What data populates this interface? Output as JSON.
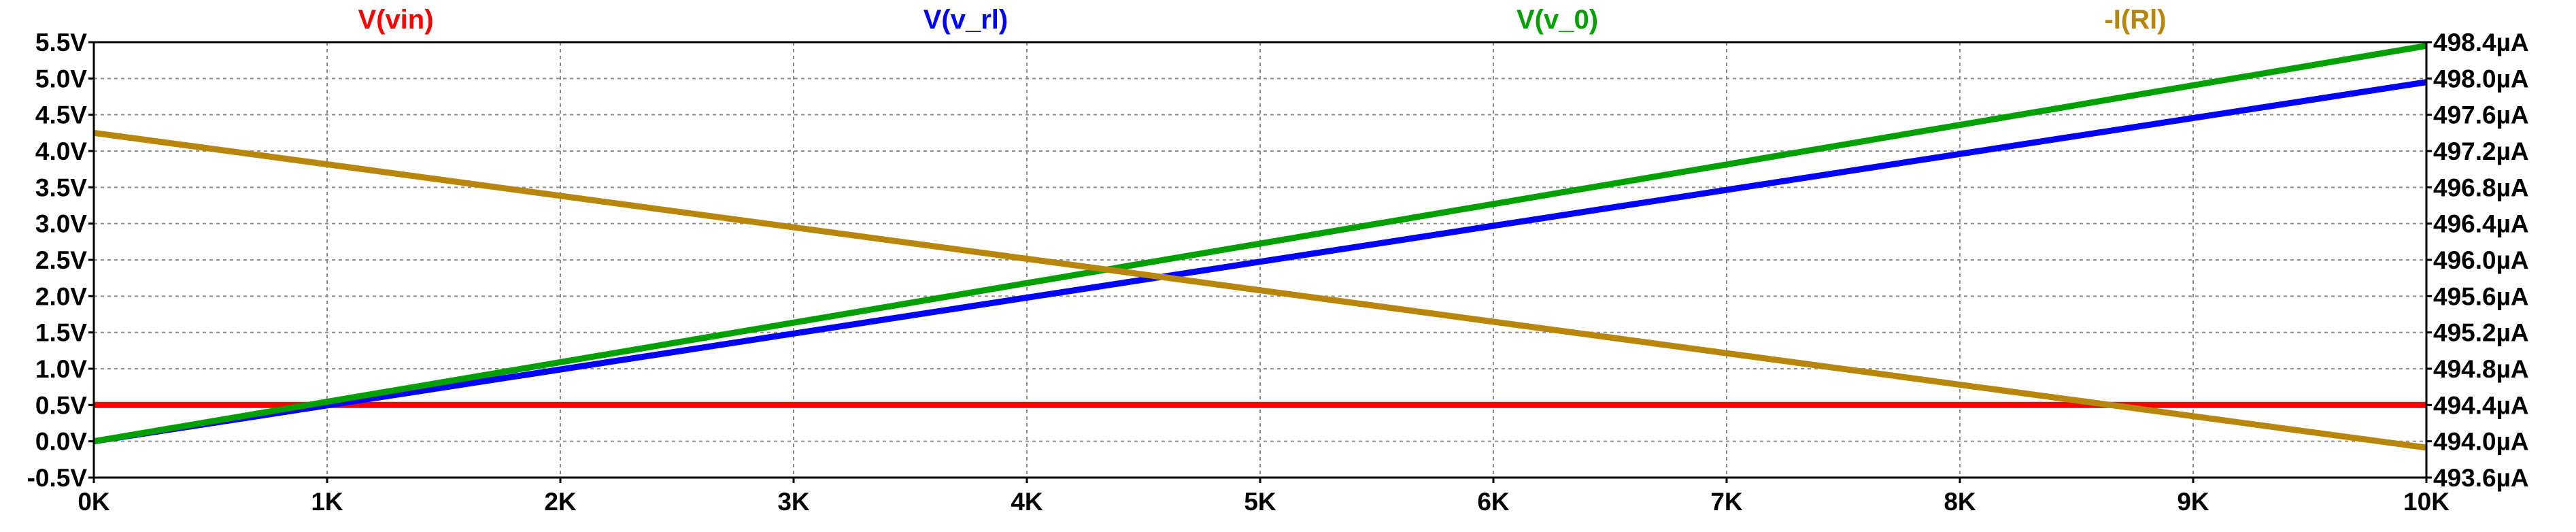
{
  "chart_data": {
    "type": "line",
    "title": "",
    "xlabel": "",
    "ylabel": "",
    "xlim": [
      0,
      10000
    ],
    "ylim_left": [
      -0.5,
      5.5
    ],
    "ylim_right": [
      493.6,
      498.4
    ],
    "grid": true,
    "x_ticks": [
      "0K",
      "1K",
      "2K",
      "3K",
      "4K",
      "5K",
      "6K",
      "7K",
      "8K",
      "9K",
      "10K"
    ],
    "y_left_ticks": [
      "5.5V",
      "5.0V",
      "4.5V",
      "4.0V",
      "3.5V",
      "3.0V",
      "2.5V",
      "2.0V",
      "1.5V",
      "1.0V",
      "0.5V",
      "0.0V",
      "-0.5V"
    ],
    "y_right_ticks": [
      "498.4µA",
      "498.0µA",
      "497.6µA",
      "497.2µA",
      "496.8µA",
      "496.4µA",
      "496.0µA",
      "495.6µA",
      "495.2µA",
      "494.8µA",
      "494.4µA",
      "494.0µA",
      "493.6µA"
    ],
    "series": [
      {
        "name": "V(vin)",
        "color": "#ff0000",
        "axis": "left",
        "x": [
          0,
          10000
        ],
        "y": [
          0.5,
          0.5
        ]
      },
      {
        "name": "V(v_rl)",
        "color": "#0000ff",
        "axis": "left",
        "x": [
          0,
          10000
        ],
        "y": [
          0.0,
          4.95
        ]
      },
      {
        "name": "V(v_0)",
        "color": "#00a000",
        "axis": "left",
        "x": [
          0,
          10000
        ],
        "y": [
          0.0,
          5.45
        ]
      },
      {
        "name": "-I(Rl)",
        "color": "#b8860b",
        "axis": "right",
        "x": [
          0,
          10000
        ],
        "y": [
          497.4,
          493.93
        ]
      }
    ]
  }
}
